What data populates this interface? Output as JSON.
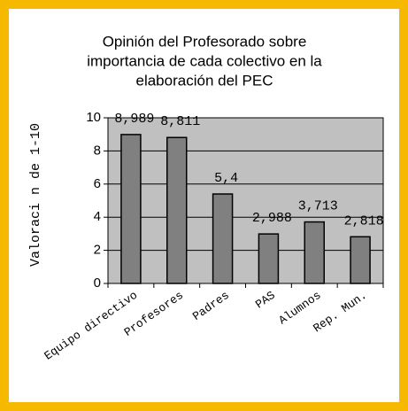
{
  "chart_data": {
    "type": "bar",
    "title": [
      "Opinión del Profesorado sobre",
      "importancia de cada colectivo en la",
      "elaboración del PEC"
    ],
    "y_label": "Valoraci n de 1-10",
    "categories": [
      "Equipo directivo",
      "Profesores",
      "Padres",
      "PAS",
      "Alumnos",
      "Rep. Mun."
    ],
    "values": [
      8.989,
      8.811,
      5.4,
      2.988,
      3.713,
      2.818
    ],
    "value_labels": [
      "8,989",
      "8,811",
      "5,4",
      "2,988",
      "3,713",
      "2,818"
    ],
    "color": "#808080",
    "plot_background": "#c0c0c0",
    "ylim": [
      0,
      10
    ],
    "yticks": [
      0,
      2,
      4,
      6,
      8,
      10
    ],
    "grid": true
  }
}
